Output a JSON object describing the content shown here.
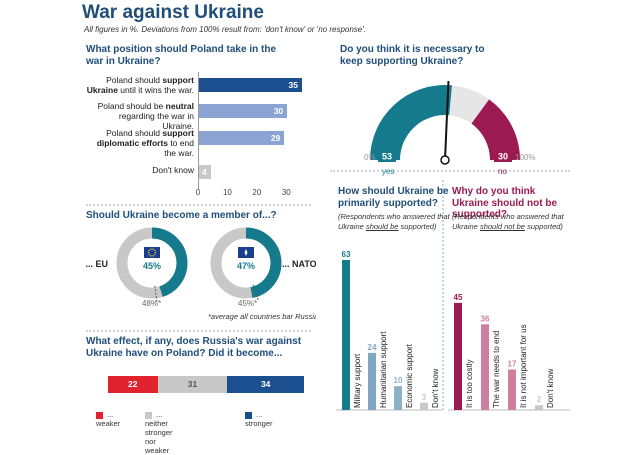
{
  "header": {
    "title": "War against Ukraine",
    "subtitle": "All figures in %. Deviations from 100% result from: 'don't know' or 'no response'."
  },
  "colors": {
    "dark_blue": "#1b4f8f",
    "light_blue": "#8aa3d2",
    "grey": "#c8c8c8",
    "teal": "#157b8c",
    "magenta": "#9c1a52",
    "pink": "#cf7f9e",
    "red": "#e0232f"
  },
  "chart_data": [
    {
      "type": "bar",
      "title": "What position should Poland take in the war in Ukraine?",
      "categories": [
        "Poland should support Ukraine until it wins the war.",
        "Poland should be neutral regarding the war in Ukraine.",
        "Poland should support diplomatic efforts to end the war.",
        "Don't know"
      ],
      "label_parts": [
        [
          "Poland should ",
          "support",
          " ",
          "Ukraine",
          " until it wins the war."
        ],
        [
          "Poland should be ",
          "neutral",
          " regarding the war in Ukraine."
        ],
        [
          "Poland should ",
          "support",
          " ",
          "diplomatic efforts",
          " to end the war."
        ],
        [
          "Don't know"
        ]
      ],
      "values": [
        35,
        30,
        29,
        4
      ],
      "xticks": [
        0,
        10,
        20,
        30
      ],
      "xlim": [
        0,
        35
      ]
    },
    {
      "type": "pie",
      "title": "Do you think it is necessary to keep supporting Ukraine?",
      "categories": [
        "yes",
        "no"
      ],
      "values": [
        53,
        30
      ],
      "value_labels": [
        "53",
        "30"
      ],
      "scale_labels": [
        "0%",
        "100%"
      ]
    },
    {
      "type": "pie",
      "title": "Should Ukraine become a member of...?",
      "charts": [
        {
          "name": "... EU",
          "value": 45,
          "average": 48
        },
        {
          "name": "... NATO",
          "value": 47,
          "average": 45
        }
      ],
      "value_labels": [
        "45%",
        "47%"
      ],
      "average_labels": [
        "48%*",
        "45%*"
      ],
      "footnote": "*average all countries bar Russia"
    },
    {
      "type": "bar",
      "title": "What effect, if any, does Russia's war against Ukraine have on Poland? Did it become...",
      "categories": [
        "... weaker",
        "... neither stronger nor weaker",
        "... stronger"
      ],
      "values": [
        22,
        31,
        34
      ]
    },
    {
      "type": "bar",
      "title": "How should Ukraine be primarily supported?",
      "note": "(Respondents who answered that Ukraine should be supported)",
      "categories": [
        "Military support",
        "Humanitarian support",
        "Economic support",
        "Don't know"
      ],
      "values": [
        63,
        24,
        10,
        3
      ]
    },
    {
      "type": "bar",
      "title": "Why do you think Ukraine should not be supported?",
      "note": "(Respondents who answered that Ukraine should not be supported)",
      "categories": [
        "It is too costly",
        "The war needs to end",
        "It is not important for us",
        "Don't know"
      ],
      "values": [
        45,
        36,
        17,
        2
      ]
    }
  ],
  "text": {
    "position_title": "What position should Poland take in the war in Ukraine?",
    "necessary_title": "Do you think it is necessary to keep supporting Ukraine?",
    "member_title": "Should Ukraine become a member of...?",
    "effect_title": "What effect, if any, does Russia's war against Ukraine have on Poland? Did it become...",
    "how_title": "How should Ukraine be primarily supported?",
    "how_note_pre": "(Respondents who answered that Ukraine ",
    "how_note_em": "should be",
    "how_note_post": " supported)",
    "why_title": "Why do you think Ukraine should not be supported?",
    "why_note_pre": "(Respondents who answered that Ukraine ",
    "why_note_em": "should not be",
    "why_note_post": " supported)",
    "footnote": "*average all countries bar Russia"
  }
}
